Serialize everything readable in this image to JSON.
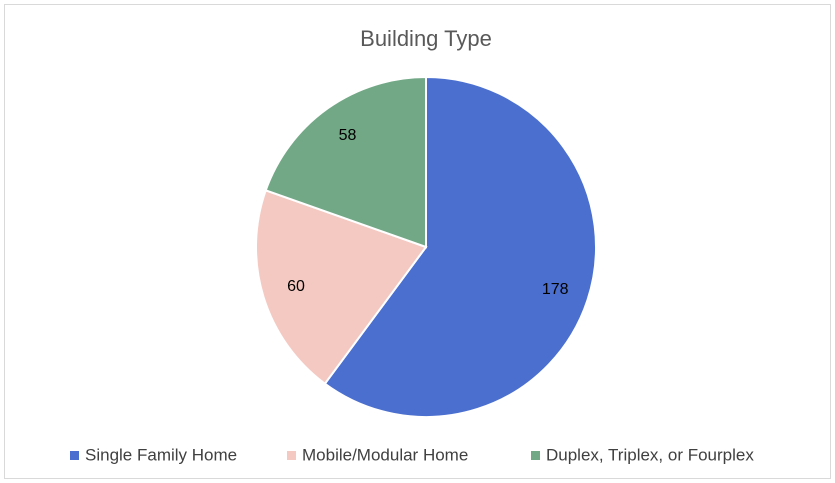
{
  "chart_data": {
    "type": "pie",
    "title": "Building Type",
    "categories": [
      "Single Family Home",
      "Mobile/Modular Home",
      "Duplex, Triplex, or Fourplex"
    ],
    "values": [
      178,
      60,
      58
    ],
    "colors": [
      "#4a6fcf",
      "#f4c9c2",
      "#72a886"
    ],
    "legend": "bottom"
  }
}
